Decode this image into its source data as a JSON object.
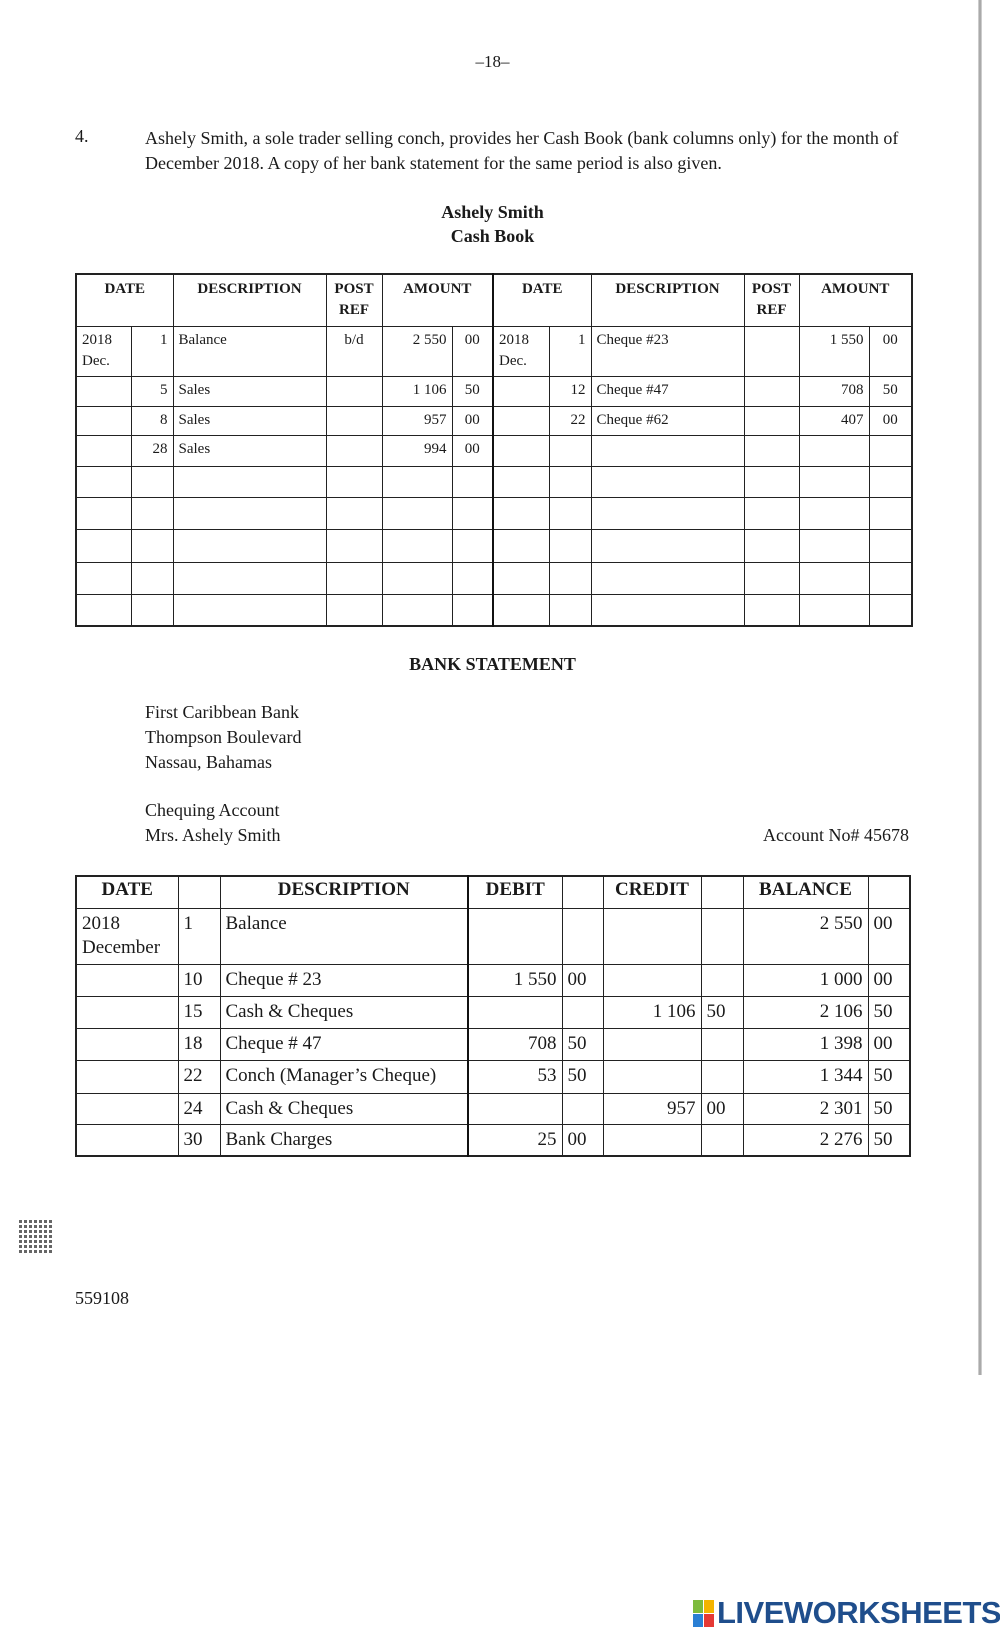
{
  "page_number": "–18–",
  "question": {
    "number": "4.",
    "text": "Ashely Smith, a sole trader selling conch, provides her Cash Book (bank columns only) for the month of December 2018.  A copy of her bank statement for the same period is also given."
  },
  "cash_book": {
    "title_line1": "Ashely Smith",
    "title_line2": "Cash Book",
    "headers": [
      "DATE",
      "DESCRIPTION",
      "POST REF",
      "AMOUNT",
      "DATE",
      "DESCRIPTION",
      "POST REF",
      "AMOUNT"
    ],
    "debit_rows": [
      {
        "month": "2018 Dec.",
        "day": "1",
        "description": "Balance",
        "post_ref": "b/d",
        "amount": "2 550",
        "cents": "00"
      },
      {
        "month": "",
        "day": "5",
        "description": "Sales",
        "post_ref": "",
        "amount": "1 106",
        "cents": "50"
      },
      {
        "month": "",
        "day": "8",
        "description": "Sales",
        "post_ref": "",
        "amount": "957",
        "cents": "00"
      },
      {
        "month": "",
        "day": "28",
        "description": "Sales",
        "post_ref": "",
        "amount": "994",
        "cents": "00"
      }
    ],
    "credit_rows": [
      {
        "month": "2018 Dec.",
        "day": "1",
        "description": "Cheque #23",
        "post_ref": "",
        "amount": "1 550",
        "cents": "00"
      },
      {
        "month": "",
        "day": "12",
        "description": "Cheque #47",
        "post_ref": "",
        "amount": "708",
        "cents": "50"
      },
      {
        "month": "",
        "day": "22",
        "description": "Cheque #62",
        "post_ref": "",
        "amount": "407",
        "cents": "00"
      }
    ]
  },
  "bank_statement": {
    "title": "BANK STATEMENT",
    "bank_name": "First Caribbean Bank",
    "address_line1": "Thompson Boulevard",
    "address_line2": "Nassau, Bahamas",
    "account_type": "Chequing Account",
    "account_holder": "Mrs. Ashely Smith",
    "account_no": "Account No# 45678",
    "headers": [
      "DATE",
      "DESCRIPTION",
      "DEBIT",
      "CREDIT",
      "BALANCE"
    ],
    "rows": [
      {
        "month": "2018 December",
        "day": "1",
        "description": "Balance",
        "debit": "",
        "debit_c": "",
        "credit": "",
        "credit_c": "",
        "balance": "2 550",
        "balance_c": "00"
      },
      {
        "month": "",
        "day": "10",
        "description": "Cheque # 23",
        "debit": "1 550",
        "debit_c": "00",
        "credit": "",
        "credit_c": "",
        "balance": "1 000",
        "balance_c": "00"
      },
      {
        "month": "",
        "day": "15",
        "description": "Cash & Cheques",
        "debit": "",
        "debit_c": "",
        "credit": "1 106",
        "credit_c": "50",
        "balance": "2 106",
        "balance_c": "50"
      },
      {
        "month": "",
        "day": "18",
        "description": "Cheque # 47",
        "debit": "708",
        "debit_c": "50",
        "credit": "",
        "credit_c": "",
        "balance": "1 398",
        "balance_c": "00"
      },
      {
        "month": "",
        "day": "22",
        "description": "Conch (Manager’s Cheque)",
        "debit": "53",
        "debit_c": "50",
        "credit": "",
        "credit_c": "",
        "balance": "1 344",
        "balance_c": "50"
      },
      {
        "month": "",
        "day": "24",
        "description": "Cash & Cheques",
        "debit": "",
        "debit_c": "",
        "credit": "957",
        "credit_c": "00",
        "balance": "2 301",
        "balance_c": "50"
      },
      {
        "month": "",
        "day": "30",
        "description": "Bank Charges",
        "debit": "25",
        "debit_c": "00",
        "credit": "",
        "credit_c": "",
        "balance": "2 276",
        "balance_c": "50"
      }
    ]
  },
  "footer_code": "559108",
  "watermark": "LIVEWORKSHEETS",
  "colors": {
    "logo_blue": "#1f4e8c",
    "ink": "#1a1a1a"
  }
}
